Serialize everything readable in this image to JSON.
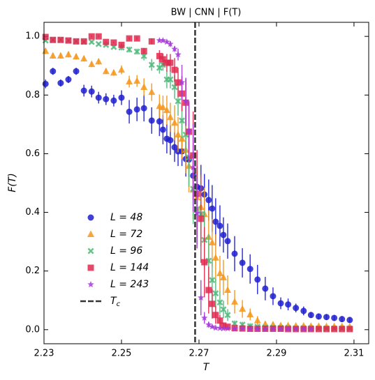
{
  "chart_data": {
    "type": "scatter",
    "title": "BW | CNN | F(T)",
    "x_label": "T",
    "y_label": "F(T)",
    "xlim": [
      2.23,
      2.3138
    ],
    "ylim": [
      -0.048,
      1.048
    ],
    "xticks": [
      2.23,
      2.25,
      2.27,
      2.29,
      2.31
    ],
    "yticks": [
      {
        "value": 0,
        "label": "0.0"
      },
      0.2,
      0.4,
      0.6,
      0.8,
      {
        "value": 1,
        "label": "1.0"
      }
    ],
    "grid": false,
    "legend": "lower left",
    "tc": {
      "value": 2.269,
      "label": "Tc",
      "color": "#333333"
    },
    "series": [
      {
        "name": "L = 48",
        "color": "#1f1fcf",
        "marker": "circle",
        "x": [
          2.2304,
          2.2323,
          2.2343,
          2.2363,
          2.2383,
          2.2403,
          2.2423,
          2.2441,
          2.246,
          2.248,
          2.25,
          2.252,
          2.254,
          2.2558,
          2.2578,
          2.2598,
          2.2607,
          2.2617,
          2.2626,
          2.2637,
          2.2646,
          2.2656,
          2.2666,
          2.2674,
          2.2685,
          2.2695,
          2.2705,
          2.2714,
          2.2725,
          2.2734,
          2.2743,
          2.2754,
          2.2763,
          2.2774,
          2.2792,
          2.2812,
          2.2832,
          2.2851,
          2.2871,
          2.2891,
          2.2911,
          2.293,
          2.295,
          2.297,
          2.2989,
          2.3009,
          2.3029,
          2.3049,
          2.3069,
          2.3089
        ],
        "values": [
          0.838,
          0.881,
          0.841,
          0.853,
          0.881,
          0.815,
          0.812,
          0.791,
          0.786,
          0.781,
          0.791,
          0.743,
          0.751,
          0.755,
          0.713,
          0.71,
          0.682,
          0.651,
          0.646,
          0.622,
          0.608,
          0.608,
          0.582,
          0.58,
          0.525,
          0.487,
          0.482,
          0.461,
          0.442,
          0.413,
          0.368,
          0.354,
          0.323,
          0.302,
          0.259,
          0.228,
          0.207,
          0.171,
          0.14,
          0.114,
          0.09,
          0.086,
          0.074,
          0.064,
          0.05,
          0.045,
          0.043,
          0.04,
          0.036,
          0.033
        ],
        "errors": [
          0.015,
          0.012,
          0.012,
          0.012,
          0.012,
          0.02,
          0.02,
          0.02,
          0.02,
          0.02,
          0.025,
          0.04,
          0.04,
          0.045,
          0.045,
          0.05,
          0.05,
          0.05,
          0.05,
          0.05,
          0.05,
          0.05,
          0.06,
          0.06,
          0.08,
          0.07,
          0.08,
          0.07,
          0.07,
          0.08,
          0.08,
          0.07,
          0.06,
          0.06,
          0.06,
          0.05,
          0.05,
          0.05,
          0.04,
          0.03,
          0.02,
          0.02,
          0.015,
          0.015,
          0.01,
          0.01,
          0.01,
          0.01,
          0.01,
          0.01
        ]
      },
      {
        "name": "L = 72",
        "color": "#f5961a",
        "marker": "triangle",
        "x": [
          2.2304,
          2.2323,
          2.2343,
          2.2363,
          2.2383,
          2.2403,
          2.2423,
          2.2441,
          2.246,
          2.248,
          2.25,
          2.252,
          2.254,
          2.2558,
          2.2578,
          2.2598,
          2.2607,
          2.2617,
          2.2626,
          2.2637,
          2.2646,
          2.2656,
          2.2666,
          2.2674,
          2.2685,
          2.2695,
          2.2705,
          2.2714,
          2.2725,
          2.2734,
          2.2743,
          2.2754,
          2.2763,
          2.2774,
          2.2792,
          2.2812,
          2.2832,
          2.2851,
          2.2871,
          2.2891,
          2.2911,
          2.293,
          2.295,
          2.297,
          2.2989,
          2.3009,
          2.3029,
          2.3049,
          2.3069,
          2.3089
        ],
        "values": [
          0.95,
          0.934,
          0.934,
          0.938,
          0.931,
          0.924,
          0.905,
          0.914,
          0.881,
          0.876,
          0.886,
          0.846,
          0.848,
          0.827,
          0.81,
          0.762,
          0.758,
          0.748,
          0.724,
          0.705,
          0.665,
          0.651,
          0.613,
          0.558,
          0.477,
          0.451,
          0.418,
          0.394,
          0.316,
          0.297,
          0.245,
          0.192,
          0.178,
          0.135,
          0.095,
          0.071,
          0.052,
          0.031,
          0.019,
          0.017,
          0.014,
          0.014,
          0.013,
          0.013,
          0.012,
          0.012,
          0.011,
          0.011,
          0.011,
          0.01
        ],
        "errors": [
          0.01,
          0.01,
          0.01,
          0.01,
          0.01,
          0.01,
          0.01,
          0.01,
          0.01,
          0.01,
          0.015,
          0.02,
          0.02,
          0.03,
          0.03,
          0.04,
          0.04,
          0.05,
          0.05,
          0.06,
          0.06,
          0.07,
          0.08,
          0.09,
          0.1,
          0.1,
          0.1,
          0.09,
          0.09,
          0.08,
          0.08,
          0.06,
          0.06,
          0.05,
          0.04,
          0.03,
          0.02,
          0.015,
          0.01,
          0.01,
          0.005,
          0.005,
          0.005,
          0.005,
          0.005,
          0.005,
          0.005,
          0.005,
          0.005,
          0.005
        ]
      },
      {
        "name": "L = 96",
        "color": "#4fb87a",
        "marker": "x",
        "x": [
          2.2304,
          2.2323,
          2.2343,
          2.2363,
          2.2383,
          2.2403,
          2.2423,
          2.2441,
          2.246,
          2.248,
          2.25,
          2.252,
          2.254,
          2.2558,
          2.2578,
          2.2598,
          2.2607,
          2.2617,
          2.2626,
          2.2637,
          2.2646,
          2.2656,
          2.2666,
          2.2674,
          2.2685,
          2.2695,
          2.2705,
          2.2714,
          2.2725,
          2.2734,
          2.2743,
          2.2754,
          2.2763,
          2.2774,
          2.2792,
          2.2812,
          2.2832,
          2.2851,
          2.2871,
          2.2891,
          2.2911,
          2.293,
          2.295,
          2.297,
          2.2989,
          2.3009,
          2.3029,
          2.3049,
          2.3069,
          2.3089
        ],
        "values": [
          0.986,
          0.988,
          0.988,
          0.986,
          0.983,
          0.981,
          0.981,
          0.974,
          0.971,
          0.964,
          0.962,
          0.955,
          0.948,
          0.933,
          0.903,
          0.893,
          0.903,
          0.853,
          0.853,
          0.827,
          0.779,
          0.713,
          0.665,
          0.587,
          0.48,
          0.411,
          0.394,
          0.306,
          0.235,
          0.169,
          0.124,
          0.093,
          0.069,
          0.05,
          0.021,
          0.017,
          0.012,
          0.01,
          0.008,
          0.007,
          0.006,
          0.006,
          0.005,
          0.005,
          0.005,
          0.004,
          0.004,
          0.004,
          0.004,
          0.004
        ],
        "errors": [
          0.005,
          0.005,
          0.005,
          0.005,
          0.005,
          0.005,
          0.005,
          0.005,
          0.005,
          0.005,
          0.01,
          0.01,
          0.01,
          0.015,
          0.02,
          0.02,
          0.02,
          0.03,
          0.03,
          0.04,
          0.05,
          0.06,
          0.07,
          0.1,
          0.12,
          0.12,
          0.11,
          0.1,
          0.09,
          0.07,
          0.05,
          0.04,
          0.03,
          0.02,
          0.01,
          0.01,
          0.01,
          0.005,
          0.005,
          0.005,
          0.003,
          0.003,
          0.003,
          0.003,
          0.003,
          0.003,
          0.003,
          0.003,
          0.003,
          0.003
        ]
      },
      {
        "name": "L = 144",
        "color": "#e0284f",
        "marker": "square",
        "x": [
          2.2304,
          2.2323,
          2.2343,
          2.2363,
          2.2383,
          2.2403,
          2.2423,
          2.2441,
          2.246,
          2.248,
          2.25,
          2.252,
          2.254,
          2.2558,
          2.2578,
          2.2598,
          2.2607,
          2.2617,
          2.2626,
          2.2637,
          2.2646,
          2.2656,
          2.2666,
          2.2674,
          2.2685,
          2.2695,
          2.2705,
          2.2714,
          2.2725,
          2.2734,
          2.2743,
          2.2754,
          2.2763,
          2.2774,
          2.2792,
          2.2812,
          2.2832,
          2.2851,
          2.2871,
          2.2891,
          2.2911,
          2.293,
          2.295,
          2.297,
          2.2989,
          2.3009,
          2.3029,
          2.3049,
          2.3069,
          2.3089
        ],
        "values": [
          0.998,
          0.988,
          0.988,
          0.986,
          0.983,
          0.983,
          1.0,
          1.0,
          0.981,
          0.979,
          0.971,
          0.993,
          0.993,
          0.95,
          0.983,
          0.933,
          0.922,
          0.91,
          0.91,
          0.886,
          0.843,
          0.805,
          0.774,
          0.675,
          0.594,
          0.463,
          0.378,
          0.23,
          0.135,
          0.088,
          0.05,
          0.031,
          0.014,
          0.01,
          0.005,
          0.004,
          0.003,
          0.003,
          0.003,
          0.003,
          0.003,
          0.002,
          0.002,
          0.002,
          0.002,
          0.002,
          0.002,
          0.002,
          0.002,
          0.002
        ],
        "errors": [
          0.003,
          0.003,
          0.003,
          0.003,
          0.003,
          0.003,
          0.003,
          0.003,
          0.003,
          0.003,
          0.005,
          0.005,
          0.005,
          0.01,
          0.01,
          0.02,
          0.02,
          0.03,
          0.03,
          0.04,
          0.05,
          0.06,
          0.08,
          0.1,
          0.15,
          0.15,
          0.15,
          0.12,
          0.08,
          0.05,
          0.03,
          0.02,
          0.01,
          0.005,
          0.003,
          0.003,
          0.003,
          0.003,
          0.003,
          0.003,
          0.002,
          0.002,
          0.002,
          0.002,
          0.002,
          0.002,
          0.002,
          0.002,
          0.002,
          0.002
        ]
      },
      {
        "name": "L = 243",
        "color": "#a43ad8",
        "marker": "star",
        "x": [
          2.2598,
          2.2607,
          2.2617,
          2.2626,
          2.2637,
          2.2646,
          2.2656,
          2.2666,
          2.2674,
          2.2685,
          2.2695,
          2.2705,
          2.2714,
          2.2725,
          2.2734,
          2.2743,
          2.2754,
          2.2763,
          2.2774,
          2.2792,
          2.2812,
          2.2832,
          2.2851,
          2.2871,
          2.2891,
          2.2911,
          2.293,
          2.295,
          2.297,
          2.2989
        ],
        "values": [
          0.986,
          0.986,
          0.981,
          0.974,
          0.957,
          0.938,
          0.843,
          0.779,
          0.679,
          0.553,
          0.397,
          0.109,
          0.04,
          0.017,
          0.01,
          0.006,
          0.005,
          0.004,
          0.004,
          0.003,
          0.003,
          0.002,
          0.002,
          0.002,
          0.002,
          0.002,
          0.002,
          0.002,
          0.002,
          0.002
        ],
        "errors": [
          0.005,
          0.005,
          0.005,
          0.01,
          0.01,
          0.02,
          0.06,
          0.08,
          0.1,
          0.15,
          0.12,
          0.06,
          0.02,
          0.01,
          0.005,
          0.003,
          0.003,
          0.002,
          0.002,
          0.002,
          0.002,
          0.002,
          0.002,
          0.002,
          0.002,
          0.002,
          0.002,
          0.002,
          0.002,
          0.002
        ]
      }
    ]
  }
}
